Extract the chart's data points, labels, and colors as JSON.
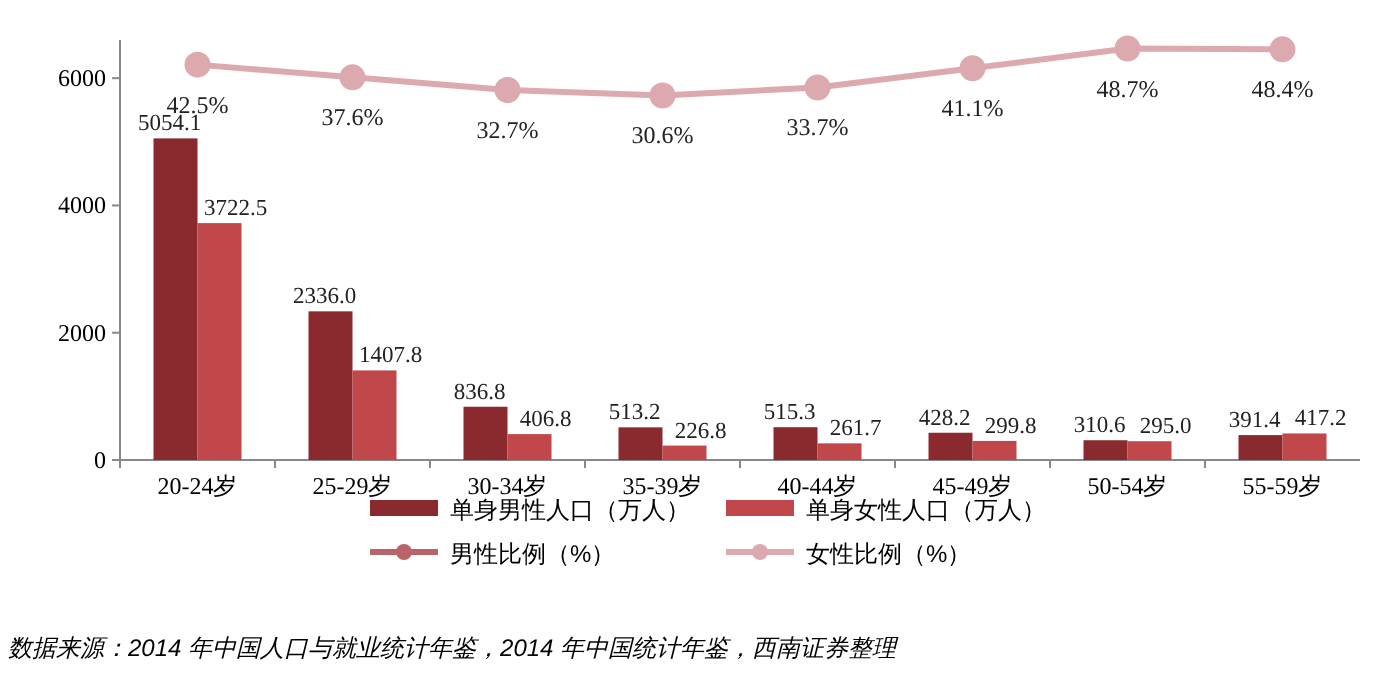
{
  "chart_data": {
    "type": "bar",
    "categories": [
      "20-24岁",
      "25-29岁",
      "30-34岁",
      "35-39岁",
      "40-44岁",
      "45-49岁",
      "50-54岁",
      "55-59岁"
    ],
    "series": [
      {
        "name": "单身男性人口（万人）",
        "color": "#8b2a2e",
        "values": [
          5054.1,
          2336.0,
          836.8,
          513.2,
          515.3,
          428.2,
          310.6,
          391.4
        ],
        "value_labels": [
          "5054.1",
          "2336.0",
          "836.8",
          "513.2",
          "515.3",
          "428.2",
          "310.6",
          "391.4"
        ]
      },
      {
        "name": "单身女性人口（万人）",
        "color": "#c0474a",
        "values": [
          3722.5,
          1407.8,
          406.8,
          226.8,
          261.7,
          299.8,
          295.0,
          417.2
        ],
        "value_labels": [
          "3722.5",
          "1407.8",
          "406.8",
          "226.8",
          "261.7",
          "299.8",
          "295.0",
          "417.2"
        ]
      },
      {
        "name": "男性比例（%）",
        "type": "line",
        "axis": "y2",
        "color": "#b8646a",
        "values": [
          null,
          null,
          null,
          null,
          null,
          null,
          null,
          null
        ]
      },
      {
        "name": "女性比例（%）",
        "type": "line",
        "axis": "y2",
        "color": "#dba9ae",
        "values": [
          42.5,
          37.6,
          32.7,
          30.6,
          33.7,
          41.1,
          48.7,
          48.4
        ],
        "value_labels": [
          "42.5%",
          "37.6%",
          "32.7%",
          "30.6%",
          "33.7%",
          "41.1%",
          "48.7%",
          "48.4%"
        ]
      }
    ],
    "ylim": [
      0,
      6600
    ],
    "yticks": [
      0,
      2000,
      4000,
      6000
    ],
    "y2lim": [
      -110,
      52
    ],
    "marker": "circle",
    "legend": "bottom",
    "grid": false,
    "annotations": [
      "数据来源：2014 年中国人口与就业统计年鉴，2014 年中国统计年鉴，西南证券整理"
    ]
  }
}
